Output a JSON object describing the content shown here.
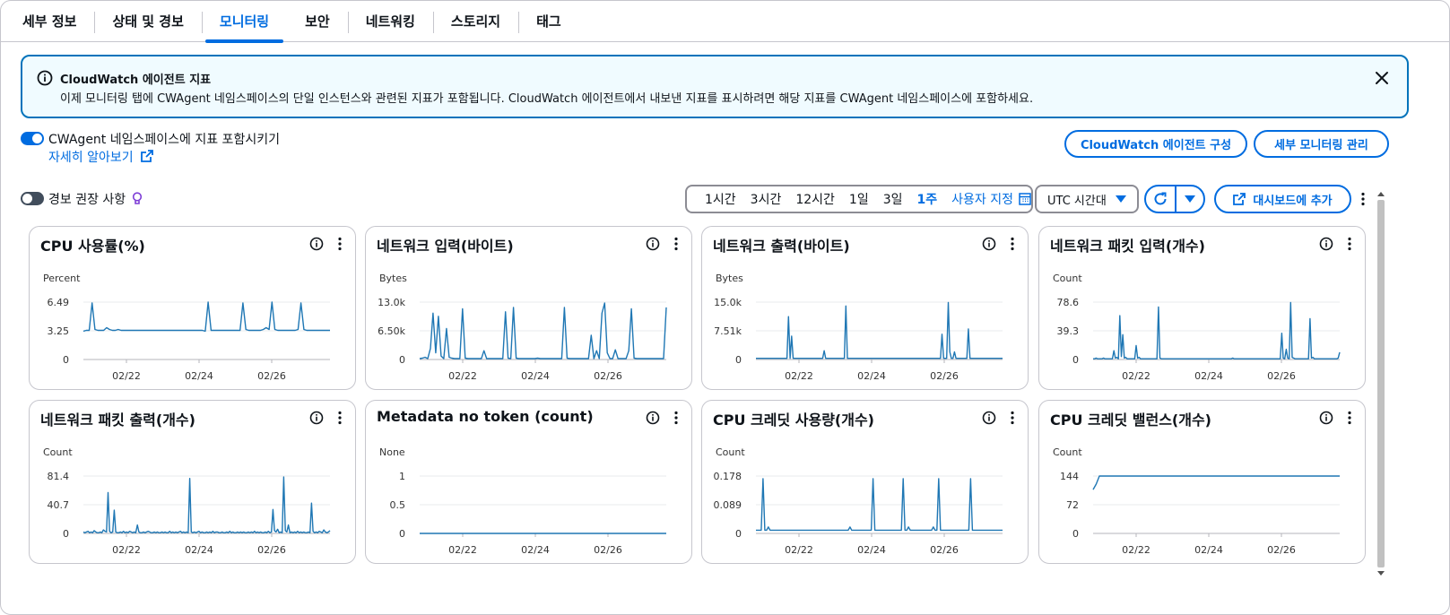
{
  "tabs": [
    {
      "label": "세부 정보",
      "active": false
    },
    {
      "label": "상태 및 경보",
      "active": false
    },
    {
      "label": "모니터링",
      "active": true
    },
    {
      "label": "보안",
      "active": false
    },
    {
      "label": "네트워킹",
      "active": false
    },
    {
      "label": "스토리지",
      "active": false
    },
    {
      "label": "태그",
      "active": false
    }
  ],
  "banner": {
    "title": "CloudWatch 에이전트 지표",
    "text": "이제 모니터링 탭에 CWAgent 네임스페이스의 단일 인스턴스와 관련된 지표가 포함됩니다. CloudWatch 에이전트에서 내보낸 지표를 표시하려면 해당 지표를 CWAgent 네임스페이스에 포함하세요.",
    "icon": "info-icon",
    "close_icon": "close-icon"
  },
  "cwagent": {
    "toggle_label": "CWAgent 네임스페이스에 지표 포함시키기",
    "toggle_on": true,
    "learn_more": "자세히 알아보기"
  },
  "buttons": {
    "configure_agent": "CloudWatch 에이전트 구성",
    "manage_detailed": "세부 모니터링 관리",
    "add_dashboard": "대시보드에 추가"
  },
  "alarm": {
    "toggle_label": "경보 권장 사항",
    "toggle_on": false
  },
  "time_range": {
    "options": [
      "1시간",
      "3시간",
      "12시간",
      "1일",
      "3일",
      "1주"
    ],
    "selected": "1주",
    "custom": "사용자 지정"
  },
  "timezone": "UTC 시간대",
  "colors": {
    "accent": "#006ce0",
    "series": "#1f77b4",
    "grid": "#e9ebed"
  },
  "x_ticks": [
    "02/22",
    "02/24",
    "02/26"
  ],
  "widgets": [
    {
      "title": "CPU 사용률(%)",
      "unit": "Percent",
      "yticks": [
        "6.49",
        "3.25",
        "0"
      ],
      "ymax": 6.49,
      "series": [
        3.2,
        3.3,
        3.3,
        6.4,
        3.4,
        3.3,
        3.3,
        3.3,
        3.6,
        3.4,
        3.3,
        3.3,
        3.4,
        3.3,
        3.3,
        3.3,
        3.3,
        3.3,
        3.3,
        3.3,
        3.3,
        3.3,
        3.3,
        3.3,
        3.3,
        3.3,
        3.3,
        3.3,
        3.3,
        3.3,
        3.3,
        3.3,
        3.3,
        3.3,
        3.3,
        3.3,
        3.3,
        3.3,
        3.3,
        3.3,
        3.3,
        3.3,
        3.2,
        6.5,
        3.3,
        3.3,
        3.3,
        3.3,
        3.3,
        3.3,
        3.3,
        3.3,
        3.3,
        3.3,
        3.3,
        6.4,
        3.4,
        3.3,
        3.3,
        3.3,
        3.3,
        3.3,
        3.4,
        3.6,
        3.4,
        6.5,
        3.4,
        3.3,
        3.3,
        3.3,
        3.3,
        3.3,
        3.3,
        3.3,
        3.4,
        6.4,
        3.4,
        3.3,
        3.3,
        3.3,
        3.3,
        3.3,
        3.3,
        3.3,
        3.3,
        3.3
      ]
    },
    {
      "title": "네트워크 입력(바이트)",
      "unit": "Bytes",
      "yticks": [
        "13.0k",
        "6.50k",
        "0"
      ],
      "ymax": 13000,
      "series": [
        200,
        300,
        500,
        200,
        2500,
        10500,
        1500,
        9800,
        800,
        200,
        7000,
        500,
        300,
        200,
        200,
        200,
        11500,
        300,
        200,
        200,
        200,
        200,
        200,
        200,
        2000,
        200,
        200,
        200,
        200,
        200,
        200,
        200,
        10800,
        300,
        200,
        11800,
        300,
        200,
        200,
        200,
        200,
        200,
        200,
        200,
        300,
        200,
        200,
        200,
        200,
        200,
        200,
        200,
        200,
        200,
        11800,
        300,
        200,
        200,
        200,
        200,
        200,
        200,
        200,
        200,
        5500,
        200,
        2000,
        200,
        10500,
        12800,
        1500,
        200,
        200,
        2200,
        200,
        200,
        200,
        200,
        2000,
        11500,
        300,
        200,
        200,
        200,
        200,
        200,
        200,
        200,
        200,
        200,
        200,
        200,
        11800
      ]
    },
    {
      "title": "네트워크 출력(바이트)",
      "unit": "Bytes",
      "yticks": [
        "15.0k",
        "7.51k",
        "0"
      ],
      "ymax": 15000,
      "series": [
        300,
        300,
        300,
        300,
        300,
        300,
        300,
        300,
        300,
        300,
        300,
        300,
        300,
        300,
        300,
        300,
        300,
        300,
        300,
        300,
        300,
        11200,
        300,
        6100,
        300,
        300,
        300,
        300,
        300,
        300,
        300,
        300,
        300,
        300,
        300,
        300,
        300,
        300,
        300,
        300,
        300,
        300,
        300,
        300,
        2300,
        300,
        300,
        300,
        300,
        300,
        300,
        300,
        300,
        300,
        300,
        300,
        300,
        300,
        14000,
        300,
        300,
        300,
        300,
        300,
        300,
        300,
        300,
        300,
        300,
        300,
        300,
        300,
        300,
        300,
        300,
        300,
        300,
        300,
        300,
        300,
        300,
        300,
        300,
        300,
        300,
        300,
        300,
        300,
        300,
        300,
        300,
        300,
        300,
        300,
        300,
        300,
        300,
        300,
        300,
        300,
        300,
        300,
        300,
        300,
        300,
        300,
        300,
        300,
        300,
        300,
        300,
        300,
        300,
        300,
        300,
        300,
        300,
        300,
        300,
        300,
        6600,
        300,
        300,
        300,
        14900,
        2000,
        300,
        300,
        2000,
        300,
        300,
        300,
        300,
        300,
        300,
        300,
        300,
        8000,
        300,
        300,
        300,
        300,
        300,
        300,
        300,
        300,
        300,
        300,
        300,
        300,
        300,
        300,
        300,
        300,
        300,
        300,
        300,
        300,
        300,
        300
      ]
    },
    {
      "title": "네트워크 패킷 입력(개수)",
      "unit": "Count",
      "yticks": [
        "78.6",
        "39.3",
        "0"
      ],
      "ymax": 78.6,
      "series": [
        1,
        1,
        2,
        1,
        1,
        1,
        1,
        2,
        1,
        1,
        1,
        1,
        1,
        1,
        12,
        2,
        3,
        1,
        60,
        4,
        34,
        2,
        3,
        1,
        1,
        1,
        1,
        1,
        1,
        19,
        2,
        3,
        1,
        1,
        1,
        1,
        1,
        1,
        1,
        1,
        1,
        1,
        1,
        1,
        72,
        2,
        1,
        1,
        1,
        1,
        1,
        1,
        1,
        1,
        1,
        1,
        1,
        1,
        1,
        1,
        1,
        1,
        1,
        1,
        1,
        1,
        1,
        1,
        1,
        1,
        1,
        1,
        1,
        1,
        1,
        1,
        1,
        1,
        1,
        1,
        1,
        1,
        1,
        1,
        1,
        1,
        1,
        1,
        1,
        1,
        1,
        1,
        1,
        1,
        2,
        1,
        1,
        1,
        1,
        1,
        1,
        1,
        1,
        1,
        1,
        1,
        1,
        1,
        1,
        1,
        1,
        1,
        1,
        1,
        1,
        1,
        1,
        1,
        1,
        1,
        1,
        1,
        1,
        1,
        1,
        1,
        1,
        36,
        2,
        1,
        14,
        2,
        1,
        78,
        3,
        2,
        1,
        1,
        1,
        1,
        1,
        1,
        1,
        1,
        1,
        1,
        56,
        2,
        3,
        1,
        1,
        1,
        1,
        1,
        1,
        1,
        1,
        1,
        1,
        1,
        1,
        1,
        1,
        1,
        1,
        2,
        10
      ]
    },
    {
      "title": "네트워크 패킷 출력(개수)",
      "unit": "Count",
      "yticks": [
        "81.4",
        "40.7",
        "0"
      ],
      "ymax": 81.4,
      "series": [
        2,
        1,
        2,
        3,
        1,
        2,
        1,
        4,
        2,
        1,
        1,
        2,
        1,
        5,
        3,
        2,
        58,
        3,
        1,
        2,
        33,
        2,
        1,
        1,
        2,
        1,
        3,
        1,
        2,
        1,
        3,
        2,
        1,
        2,
        1,
        12,
        2,
        1,
        1,
        2,
        1,
        2,
        3,
        2,
        1,
        1,
        2,
        1,
        2,
        1,
        1,
        2,
        1,
        2,
        1,
        1,
        3,
        1,
        2,
        1,
        2,
        1,
        2,
        3,
        1,
        2,
        1,
        2,
        1,
        78,
        2,
        1,
        2,
        1,
        2,
        3,
        1,
        2,
        1,
        1,
        2,
        1,
        2,
        1,
        3,
        1,
        2,
        2,
        1,
        1,
        2,
        1,
        1,
        2,
        1,
        3,
        1,
        2,
        1,
        1,
        2,
        1,
        2,
        1,
        2,
        1,
        1,
        2,
        1,
        2,
        1,
        3,
        1,
        2,
        1,
        2,
        1,
        1,
        2,
        1,
        3,
        1,
        2,
        34,
        4,
        2,
        6,
        1,
        2,
        1,
        80,
        4,
        2,
        12,
        1,
        2,
        1,
        2,
        1,
        3,
        1,
        2,
        1,
        2,
        1,
        1,
        2,
        1,
        43,
        3,
        1,
        2,
        1,
        3,
        2,
        1,
        5,
        2,
        1,
        2,
        4
      ]
    },
    {
      "title": "Metadata no token (count)",
      "unit": "None",
      "yticks": [
        "1",
        "0.5",
        "0"
      ],
      "ymax": 1,
      "series": [
        0,
        0,
        0,
        0,
        0,
        0,
        0,
        0,
        0,
        0,
        0,
        0,
        0,
        0,
        0,
        0,
        0,
        0,
        0,
        0,
        0,
        0,
        0,
        0,
        0,
        0,
        0,
        0,
        0,
        0,
        0,
        0,
        0,
        0,
        0,
        0,
        0,
        0,
        0,
        0
      ]
    },
    {
      "title": "CPU 크레딧 사용량(개수)",
      "unit": "Count",
      "yticks": [
        "0.178",
        "0.089",
        "0"
      ],
      "ymax": 0.178,
      "series": [
        0.01,
        0.01,
        0.01,
        0.01,
        0.17,
        0.01,
        0.01,
        0.02,
        0.01,
        0.01,
        0.01,
        0.01,
        0.01,
        0.01,
        0.01,
        0.01,
        0.01,
        0.01,
        0.01,
        0.01,
        0.01,
        0.01,
        0.01,
        0.01,
        0.01,
        0.01,
        0.01,
        0.01,
        0.01,
        0.01,
        0.01,
        0.01,
        0.01,
        0.01,
        0.01,
        0.01,
        0.01,
        0.01,
        0.01,
        0.01,
        0.01,
        0.01,
        0.01,
        0.01,
        0.01,
        0.01,
        0.01,
        0.01,
        0.01,
        0.01,
        0.01,
        0.01,
        0.01,
        0.02,
        0.01,
        0.01,
        0.01,
        0.01,
        0.01,
        0.01,
        0.01,
        0.01,
        0.01,
        0.01,
        0.01,
        0.01,
        0.17,
        0.01,
        0.01,
        0.01,
        0.01,
        0.01,
        0.01,
        0.01,
        0.01,
        0.01,
        0.01,
        0.01,
        0.01,
        0.01,
        0.01,
        0.01,
        0.01,
        0.17,
        0.01,
        0.01,
        0.02,
        0.01,
        0.01,
        0.01,
        0.01,
        0.01,
        0.01,
        0.01,
        0.01,
        0.01,
        0.01,
        0.01,
        0.01,
        0.01,
        0.02,
        0.01,
        0.01,
        0.17,
        0.01,
        0.01,
        0.01,
        0.01,
        0.01,
        0.01,
        0.01,
        0.01,
        0.01,
        0.01,
        0.01,
        0.01,
        0.01,
        0.01,
        0.01,
        0.01,
        0.01,
        0.17,
        0.01,
        0.01,
        0.01,
        0.01,
        0.01,
        0.01,
        0.01,
        0.01,
        0.01,
        0.01,
        0.01,
        0.01,
        0.01,
        0.01,
        0.01,
        0.01,
        0.01,
        0.01
      ]
    },
    {
      "title": "CPU 크레딧 밸런스(개수)",
      "unit": "Count",
      "yticks": [
        "144",
        "72",
        "0"
      ],
      "ymax": 144,
      "series": [
        110,
        124,
        144,
        144,
        144,
        144,
        144,
        144,
        144,
        144,
        144,
        144,
        144,
        144,
        144,
        144,
        144,
        144,
        144,
        144,
        144,
        144,
        144,
        144,
        144,
        144,
        144,
        144,
        144,
        144,
        144,
        144,
        144,
        144,
        144,
        144,
        144,
        144,
        144,
        144,
        144,
        144,
        144,
        144,
        144,
        144,
        144,
        144,
        144,
        144,
        144,
        144,
        144,
        144,
        144,
        144,
        144,
        144,
        144,
        144,
        144,
        144,
        144,
        144,
        144,
        144,
        144,
        144,
        144,
        144,
        144,
        144,
        144,
        144,
        144,
        144,
        144,
        144,
        144,
        144
      ]
    }
  ]
}
